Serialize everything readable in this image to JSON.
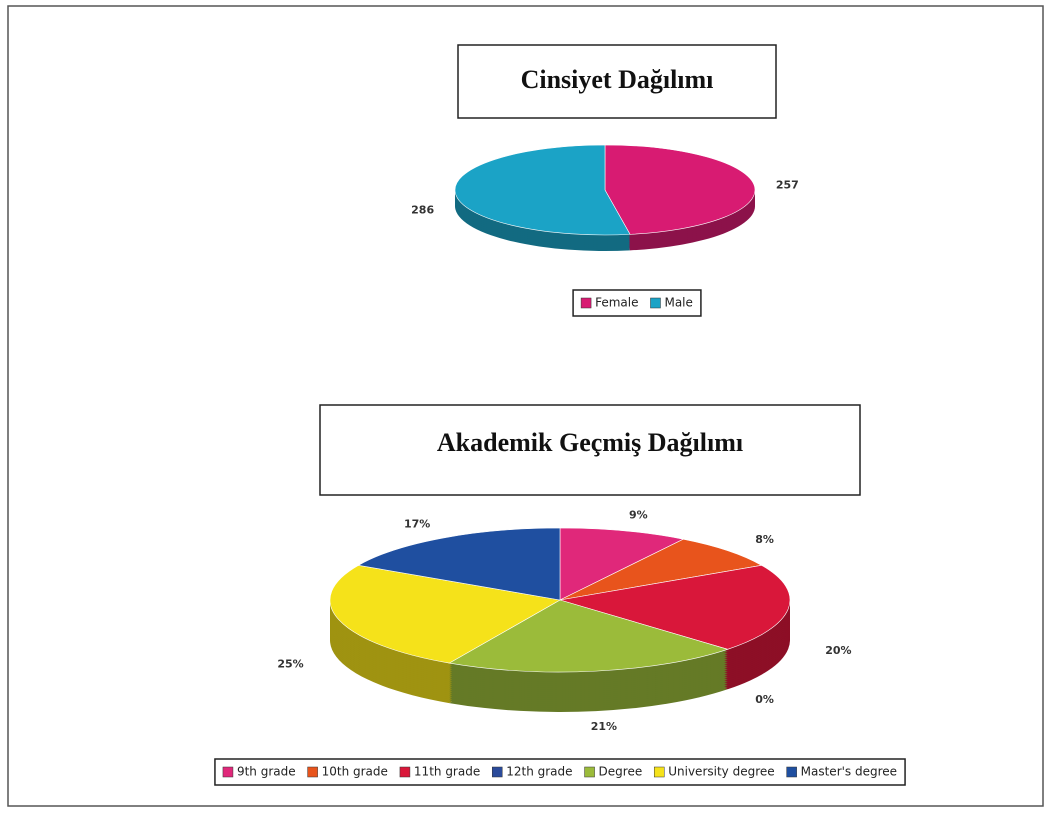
{
  "chart_data": [
    {
      "type": "pie",
      "title": "Cinsiyet Dağılımı",
      "categories": [
        "Female",
        "Male"
      ],
      "values": [
        257,
        286
      ],
      "colors": [
        "#d81b72",
        "#1ba3c6"
      ],
      "legend": "bottom"
    },
    {
      "type": "pie",
      "title": "Akademik Geçmiş Dağılımı",
      "categories": [
        "9th grade",
        "10th grade",
        "11th grade",
        "12th grade",
        "Degree",
        "University degree",
        "Master's degree"
      ],
      "values": [
        9,
        8,
        20,
        0,
        21,
        25,
        17
      ],
      "value_labels": [
        "9%",
        "8%",
        "20%",
        "0%",
        "21%",
        "25%",
        "17%"
      ],
      "colors": [
        "#e0287a",
        "#e8541c",
        "#d9173a",
        "#2a4a9a",
        "#9bbb3a",
        "#f5e21a",
        "#1f4fa0"
      ],
      "legend": "bottom"
    }
  ]
}
